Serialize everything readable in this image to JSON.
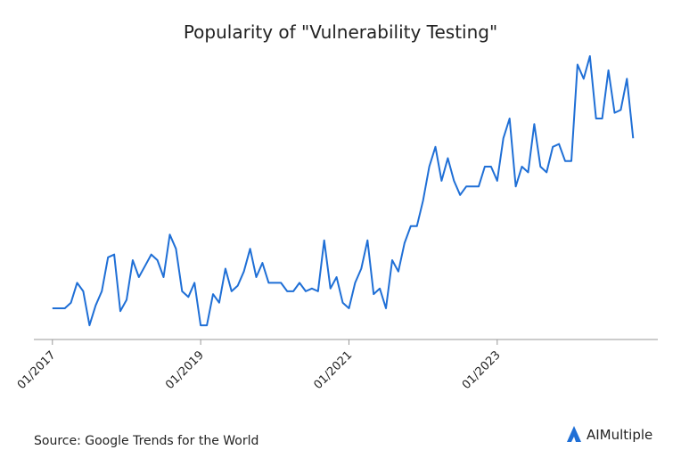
{
  "chart_data": {
    "type": "line",
    "title": "Popularity of \"Vulnerability Testing\"",
    "x": [
      "2017-01",
      "2017-02",
      "2017-03",
      "2017-04",
      "2017-05",
      "2017-06",
      "2017-07",
      "2017-08",
      "2017-09",
      "2017-10",
      "2017-11",
      "2017-12",
      "2018-01",
      "2018-02",
      "2018-03",
      "2018-04",
      "2018-05",
      "2018-06",
      "2018-07",
      "2018-08",
      "2018-09",
      "2018-10",
      "2018-11",
      "2018-12",
      "2019-01",
      "2019-02",
      "2019-03",
      "2019-04",
      "2019-05",
      "2019-06",
      "2019-07",
      "2019-08",
      "2019-09",
      "2019-10",
      "2019-11",
      "2019-12",
      "2020-01",
      "2020-02",
      "2020-03",
      "2020-04",
      "2020-05",
      "2020-06",
      "2020-07",
      "2020-08",
      "2020-09",
      "2020-10",
      "2020-11",
      "2020-12",
      "2021-01",
      "2021-02",
      "2021-03",
      "2021-04",
      "2021-05",
      "2021-06",
      "2021-07",
      "2021-08",
      "2021-09",
      "2021-10",
      "2021-11",
      "2021-12",
      "2022-01",
      "2022-02",
      "2022-03",
      "2022-04",
      "2022-05",
      "2022-06",
      "2022-07",
      "2022-08",
      "2022-09",
      "2022-10",
      "2022-11",
      "2022-12",
      "2023-01",
      "2023-02",
      "2023-03",
      "2023-04",
      "2023-05",
      "2023-06",
      "2023-07",
      "2023-08",
      "2023-09",
      "2023-10",
      "2023-11",
      "2023-12",
      "2024-01",
      "2024-02",
      "2024-03",
      "2024-04",
      "2024-05",
      "2024-06",
      "2024-07",
      "2024-08",
      "2024-09",
      "2024-10",
      "2024-11"
    ],
    "series": [
      {
        "name": "Vulnerability Testing",
        "color": "#1f6fd6",
        "values": [
          11,
          11,
          11,
          13,
          20,
          17,
          5,
          12,
          17,
          29,
          30,
          10,
          14,
          28,
          22,
          26,
          30,
          28,
          22,
          37,
          32,
          17,
          15,
          20,
          5,
          5,
          16,
          13,
          25,
          17,
          19,
          24,
          32,
          22,
          27,
          20,
          20,
          20,
          17,
          17,
          20,
          17,
          18,
          17,
          35,
          18,
          22,
          13,
          11,
          20,
          25,
          35,
          16,
          18,
          11,
          28,
          24,
          34,
          40,
          40,
          49,
          61,
          68,
          56,
          64,
          56,
          51,
          54,
          54,
          54,
          61,
          61,
          56,
          71,
          78,
          54,
          61,
          59,
          76,
          61,
          59,
          68,
          69,
          63,
          63,
          97,
          92,
          100,
          78,
          78,
          95,
          80,
          81,
          92,
          71
        ]
      }
    ],
    "xlim": [
      "2016-10",
      "2025-03"
    ],
    "xticks": [
      {
        "value": "2017-01",
        "label": "01/2017"
      },
      {
        "value": "2019-01",
        "label": "01/2019"
      },
      {
        "value": "2021-01",
        "label": "01/2021"
      },
      {
        "value": "2023-01",
        "label": "01/2023"
      }
    ],
    "ylim": [
      0,
      100
    ],
    "source": "Source: Google Trends for the World",
    "brand": "AIMultiple"
  }
}
